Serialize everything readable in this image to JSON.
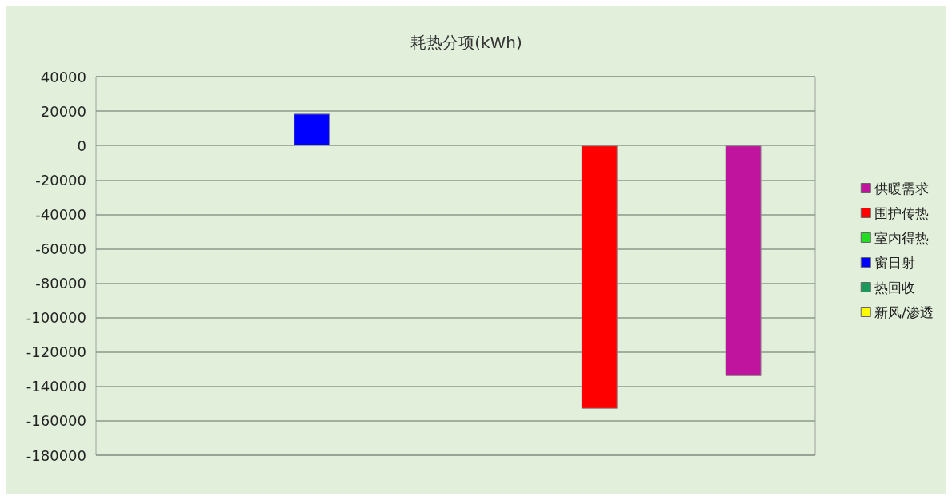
{
  "chart_data": {
    "type": "bar",
    "title": "耗热分项(kWh)",
    "stacked": true,
    "categories": [
      null,
      null,
      null,
      null,
      null
    ],
    "series": [
      {
        "name": "供暖需求",
        "color": "#c0149e",
        "values": [
          null,
          null,
          null,
          null,
          -134000
        ]
      },
      {
        "name": "围护传热",
        "color": "#ff0000",
        "values": [
          null,
          null,
          null,
          -153000,
          null
        ]
      },
      {
        "name": "室内得热",
        "color": "#22dd22",
        "values": [
          null,
          null,
          null,
          null,
          null
        ]
      },
      {
        "name": "窗日射",
        "color": "#0000ff",
        "values": [
          null,
          18500,
          null,
          null,
          null
        ]
      },
      {
        "name": "热回收",
        "color": "#1a9a5a",
        "values": [
          null,
          null,
          null,
          null,
          null
        ]
      },
      {
        "name": "新风/渗透",
        "color": "#ffff00",
        "values": [
          null,
          null,
          null,
          null,
          null
        ]
      }
    ],
    "ylim": [
      -180000,
      40000
    ],
    "yticks": [
      -180000,
      -160000,
      -140000,
      -120000,
      -100000,
      -80000,
      -60000,
      -40000,
      -20000,
      0,
      20000,
      40000
    ],
    "grid": "y",
    "legend": "right"
  }
}
